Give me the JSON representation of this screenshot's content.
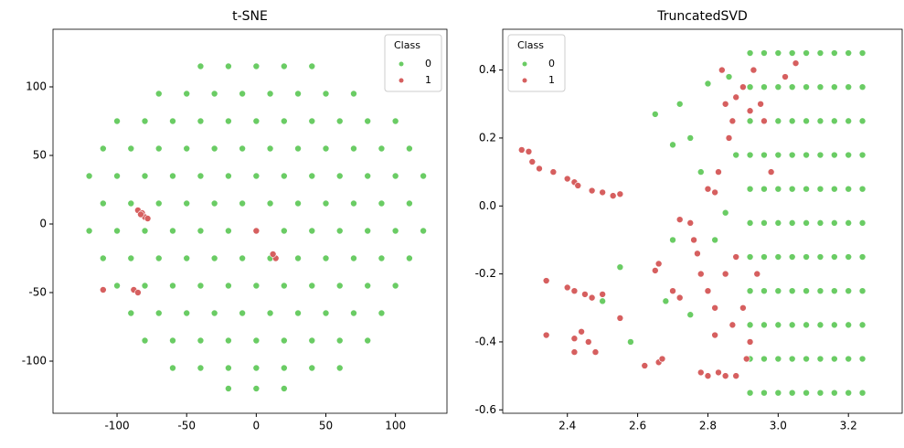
{
  "chart_data": [
    {
      "type": "scatter",
      "title": "t-SNE",
      "xlim": [
        -146,
        137
      ],
      "ylim": [
        -138,
        142
      ],
      "xticks": [
        -100,
        -50,
        0,
        50,
        100
      ],
      "yticks": [
        -100,
        -50,
        0,
        50,
        100
      ],
      "legend_title": "Class",
      "legend": "upper right",
      "series": [
        {
          "name": "0",
          "color": "#6acc64",
          "x": [
            -40,
            -20,
            0,
            20,
            40,
            -70,
            -50,
            -30,
            -10,
            10,
            30,
            50,
            70,
            -100,
            -80,
            -60,
            -40,
            -20,
            0,
            20,
            40,
            60,
            80,
            100,
            -110,
            -90,
            -70,
            -50,
            -30,
            -10,
            10,
            30,
            50,
            70,
            90,
            110,
            -120,
            -100,
            -80,
            -60,
            -40,
            -20,
            0,
            20,
            40,
            60,
            80,
            100,
            120,
            -110,
            -90,
            -70,
            -50,
            -30,
            -10,
            10,
            30,
            50,
            70,
            90,
            110,
            -120,
            -100,
            -80,
            -60,
            -40,
            -20,
            0,
            20,
            40,
            60,
            80,
            100,
            120,
            -110,
            -90,
            -70,
            -50,
            -30,
            -10,
            10,
            30,
            50,
            70,
            90,
            110,
            -100,
            -80,
            -60,
            -40,
            -20,
            0,
            20,
            40,
            60,
            80,
            100,
            -90,
            -70,
            -50,
            -30,
            -10,
            10,
            30,
            50,
            70,
            90,
            -80,
            -60,
            -40,
            -20,
            0,
            20,
            40,
            60,
            80,
            -60,
            -40,
            -20,
            0,
            20,
            40,
            60,
            -20,
            0,
            20
          ],
          "y": [
            115,
            115,
            115,
            115,
            115,
            95,
            95,
            95,
            95,
            95,
            95,
            95,
            95,
            75,
            75,
            75,
            75,
            75,
            75,
            75,
            75,
            75,
            75,
            75,
            55,
            55,
            55,
            55,
            55,
            55,
            55,
            55,
            55,
            55,
            55,
            55,
            35,
            35,
            35,
            35,
            35,
            35,
            35,
            35,
            35,
            35,
            35,
            35,
            35,
            15,
            15,
            15,
            15,
            15,
            15,
            15,
            15,
            15,
            15,
            15,
            15,
            -5,
            -5,
            -5,
            -5,
            -5,
            -5,
            -5,
            -5,
            -5,
            -5,
            -5,
            -5,
            -5,
            -25,
            -25,
            -25,
            -25,
            -25,
            -25,
            -25,
            -25,
            -25,
            -25,
            -25,
            -25,
            -45,
            -45,
            -45,
            -45,
            -45,
            -45,
            -45,
            -45,
            -45,
            -45,
            -45,
            -65,
            -65,
            -65,
            -65,
            -65,
            -65,
            -65,
            -65,
            -65,
            -65,
            -85,
            -85,
            -85,
            -85,
            -85,
            -85,
            -85,
            -85,
            -85,
            -105,
            -105,
            -105,
            -105,
            -105,
            -105,
            -105,
            -120,
            -120,
            -120
          ]
        },
        {
          "name": "1",
          "color": "#d65f5f",
          "x": [
            -85,
            -82,
            -80,
            -78,
            -83,
            -88,
            -85,
            -110,
            0,
            14,
            12
          ],
          "y": [
            10,
            8,
            5,
            4,
            7,
            -48,
            -50,
            -48,
            -5,
            -25,
            -22
          ]
        }
      ]
    },
    {
      "type": "scatter",
      "title": "TruncatedSVD",
      "xlim": [
        2.216,
        3.353
      ],
      "ylim": [
        -0.61,
        0.52
      ],
      "xticks": [
        2.4,
        2.6,
        2.8,
        {
          "value": 3.0,
          "label": "3.0"
        },
        3.2
      ],
      "yticks": [
        -0.6,
        -0.4,
        -0.2,
        {
          "value": 0.0,
          "label": "0.0"
        },
        0.2,
        0.4
      ],
      "legend_title": "Class",
      "legend": "upper left",
      "series": [
        {
          "name": "0",
          "color": "#6acc64",
          "x": [
            2.92,
            2.96,
            3.0,
            3.04,
            3.08,
            3.12,
            3.16,
            3.2,
            3.24,
            2.92,
            2.96,
            3.0,
            3.04,
            3.08,
            3.12,
            3.16,
            3.2,
            3.24,
            2.92,
            2.96,
            3.0,
            3.04,
            3.08,
            3.12,
            3.16,
            3.2,
            3.24,
            2.92,
            2.96,
            3.0,
            3.04,
            3.08,
            3.12,
            3.16,
            3.2,
            3.24,
            2.92,
            2.96,
            3.0,
            3.04,
            3.08,
            3.12,
            3.16,
            3.2,
            3.24,
            2.92,
            2.96,
            3.0,
            3.04,
            3.08,
            3.12,
            3.16,
            3.2,
            3.24,
            2.92,
            2.96,
            3.0,
            3.04,
            3.08,
            3.12,
            3.16,
            3.2,
            3.24,
            2.92,
            2.96,
            3.0,
            3.04,
            3.08,
            3.12,
            3.16,
            3.2,
            3.24,
            2.92,
            2.96,
            3.0,
            3.04,
            3.08,
            3.12,
            3.16,
            3.2,
            3.24,
            2.92,
            2.96,
            3.0,
            3.04,
            3.08,
            3.12,
            3.16,
            3.2,
            3.24,
            2.92,
            2.96,
            3.0,
            3.04,
            3.08,
            3.12,
            3.16,
            3.2,
            3.24,
            2.65,
            2.7,
            2.75,
            2.72,
            2.8,
            2.55,
            2.5,
            2.58,
            2.68,
            2.75,
            2.85,
            2.88,
            2.82,
            2.78,
            2.7,
            2.86
          ],
          "y": [
            0.45,
            0.45,
            0.45,
            0.45,
            0.45,
            0.45,
            0.45,
            0.45,
            0.45,
            0.35,
            0.35,
            0.35,
            0.35,
            0.35,
            0.35,
            0.35,
            0.35,
            0.35,
            0.25,
            0.25,
            0.25,
            0.25,
            0.25,
            0.25,
            0.25,
            0.25,
            0.25,
            0.15,
            0.15,
            0.15,
            0.15,
            0.15,
            0.15,
            0.15,
            0.15,
            0.15,
            0.05,
            0.05,
            0.05,
            0.05,
            0.05,
            0.05,
            0.05,
            0.05,
            0.05,
            -0.05,
            -0.05,
            -0.05,
            -0.05,
            -0.05,
            -0.05,
            -0.05,
            -0.05,
            -0.05,
            -0.15,
            -0.15,
            -0.15,
            -0.15,
            -0.15,
            -0.15,
            -0.15,
            -0.15,
            -0.15,
            -0.25,
            -0.25,
            -0.25,
            -0.25,
            -0.25,
            -0.25,
            -0.25,
            -0.25,
            -0.25,
            -0.35,
            -0.35,
            -0.35,
            -0.35,
            -0.35,
            -0.35,
            -0.35,
            -0.35,
            -0.35,
            -0.45,
            -0.45,
            -0.45,
            -0.45,
            -0.45,
            -0.45,
            -0.45,
            -0.45,
            -0.45,
            -0.55,
            -0.55,
            -0.55,
            -0.55,
            -0.55,
            -0.55,
            -0.55,
            -0.55,
            -0.55,
            0.27,
            0.18,
            0.2,
            0.3,
            0.36,
            -0.18,
            -0.28,
            -0.4,
            -0.28,
            -0.32,
            -0.02,
            0.15,
            -0.1,
            0.1,
            -0.1,
            0.38
          ]
        },
        {
          "name": "1",
          "color": "#d65f5f",
          "x": [
            2.27,
            2.29,
            2.3,
            2.32,
            2.36,
            2.4,
            2.42,
            2.43,
            2.47,
            2.5,
            2.53,
            2.55,
            2.4,
            2.42,
            2.45,
            2.47,
            2.5,
            2.34,
            2.34,
            2.42,
            2.44,
            2.46,
            2.42,
            2.48,
            2.55,
            2.62,
            2.66,
            2.67,
            2.65,
            2.66,
            2.7,
            2.72,
            2.75,
            2.76,
            2.72,
            2.78,
            2.8,
            2.82,
            2.78,
            2.8,
            2.83,
            2.85,
            2.88,
            2.77,
            2.8,
            2.82,
            2.83,
            2.84,
            2.85,
            2.86,
            2.87,
            2.88,
            2.9,
            2.92,
            2.93,
            2.95,
            2.96,
            2.98,
            2.85,
            2.87,
            2.9,
            2.92,
            2.88,
            2.91,
            2.82,
            2.94,
            3.05,
            3.02
          ],
          "y": [
            0.165,
            0.16,
            0.13,
            0.11,
            0.1,
            0.08,
            0.07,
            0.06,
            0.045,
            0.04,
            0.03,
            0.035,
            -0.24,
            -0.25,
            -0.26,
            -0.27,
            -0.26,
            -0.22,
            -0.38,
            -0.39,
            -0.37,
            -0.4,
            -0.43,
            -0.43,
            -0.33,
            -0.47,
            -0.46,
            -0.45,
            -0.19,
            -0.17,
            -0.25,
            -0.27,
            -0.05,
            -0.1,
            -0.04,
            -0.2,
            -0.25,
            -0.3,
            -0.49,
            -0.5,
            -0.49,
            -0.5,
            -0.5,
            -0.14,
            0.05,
            0.04,
            0.1,
            0.4,
            0.3,
            0.2,
            0.25,
            0.32,
            0.35,
            0.28,
            0.4,
            0.3,
            0.25,
            0.1,
            -0.2,
            -0.35,
            -0.3,
            -0.4,
            -0.15,
            -0.45,
            -0.38,
            -0.2,
            0.42,
            0.38
          ]
        }
      ]
    }
  ]
}
